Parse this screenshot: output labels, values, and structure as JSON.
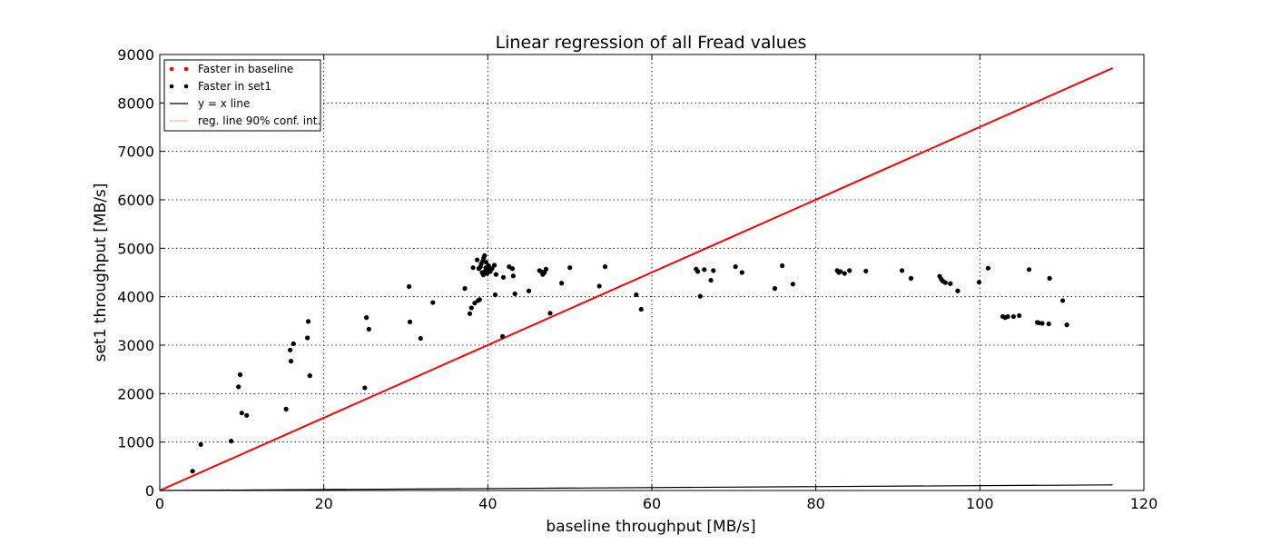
{
  "chart_data": {
    "type": "scatter",
    "title": "Linear regression of all Fread values",
    "xlabel": "baseline throughput [MB/s]",
    "ylabel": "set1 throughput [MB/s]",
    "xlim": [
      0,
      120
    ],
    "ylim": [
      0,
      9000
    ],
    "xticks": [
      0,
      20,
      40,
      60,
      80,
      100,
      120
    ],
    "yticks": [
      0,
      1000,
      2000,
      3000,
      4000,
      5000,
      6000,
      7000,
      8000,
      9000
    ],
    "grid": true,
    "legend_position": "top-left",
    "legend": [
      {
        "label": "Faster in baseline",
        "marker": "dot",
        "color": "#ff0000"
      },
      {
        "label": "Faster in set1",
        "marker": "dot",
        "color": "#000000"
      },
      {
        "label": "y = x line",
        "marker": "line",
        "color": "#000000"
      },
      {
        "label": "reg. line 90% conf. int.",
        "marker": "line",
        "color": "#ffb6c1"
      }
    ],
    "series": [
      {
        "name": "Faster in baseline",
        "color": "#ff0000",
        "points": []
      },
      {
        "name": "Faster in set1",
        "color": "#000000",
        "points": [
          [
            4,
            400
          ],
          [
            5,
            950
          ],
          [
            8.7,
            1020
          ],
          [
            9.6,
            2140
          ],
          [
            9.8,
            2390
          ],
          [
            10,
            1600
          ],
          [
            10.6,
            1550
          ],
          [
            15.4,
            1680
          ],
          [
            15.9,
            2900
          ],
          [
            16,
            2670
          ],
          [
            16.3,
            3030
          ],
          [
            18,
            3150
          ],
          [
            18.1,
            3490
          ],
          [
            18.3,
            2370
          ],
          [
            25,
            2120
          ],
          [
            25.2,
            3570
          ],
          [
            25.5,
            3330
          ],
          [
            30.4,
            4210
          ],
          [
            30.5,
            3480
          ],
          [
            31.8,
            3140
          ],
          [
            33.3,
            3880
          ],
          [
            37.2,
            4170
          ],
          [
            37.8,
            3650
          ],
          [
            38,
            3770
          ],
          [
            38.2,
            4600
          ],
          [
            38.4,
            3870
          ],
          [
            38.7,
            4760
          ],
          [
            38.8,
            3920
          ],
          [
            38.9,
            4580
          ],
          [
            39,
            3940
          ],
          [
            39.1,
            4620
          ],
          [
            39.2,
            4680
          ],
          [
            39.3,
            4500
          ],
          [
            39.4,
            4740
          ],
          [
            39.45,
            4450
          ],
          [
            39.5,
            4800
          ],
          [
            39.6,
            4850
          ],
          [
            39.7,
            4530
          ],
          [
            39.75,
            4600
          ],
          [
            39.8,
            4710
          ],
          [
            39.9,
            4480
          ],
          [
            40,
            4560
          ],
          [
            40.1,
            4640
          ],
          [
            40.3,
            4520
          ],
          [
            40.5,
            4580
          ],
          [
            40.8,
            4650
          ],
          [
            40.9,
            4040
          ],
          [
            41,
            4460
          ],
          [
            41.8,
            3180
          ],
          [
            41.9,
            4400
          ],
          [
            42.6,
            4620
          ],
          [
            43,
            4580
          ],
          [
            43.1,
            4430
          ],
          [
            43.3,
            4060
          ],
          [
            45,
            4120
          ],
          [
            46.3,
            4540
          ],
          [
            46.6,
            4510
          ],
          [
            46.7,
            4460
          ],
          [
            46.9,
            4500
          ],
          [
            47.1,
            4570
          ],
          [
            47.6,
            3660
          ],
          [
            49,
            4280
          ],
          [
            50,
            4600
          ],
          [
            53.6,
            4220
          ],
          [
            54.3,
            4620
          ],
          [
            58.1,
            4040
          ],
          [
            58.7,
            3740
          ],
          [
            65.4,
            4570
          ],
          [
            65.6,
            4520
          ],
          [
            65.9,
            4010
          ],
          [
            66.4,
            4560
          ],
          [
            67.2,
            4340
          ],
          [
            67.5,
            4540
          ],
          [
            70.2,
            4620
          ],
          [
            71,
            4500
          ],
          [
            75,
            4170
          ],
          [
            75.9,
            4640
          ],
          [
            77.2,
            4260
          ],
          [
            82.6,
            4540
          ],
          [
            82.8,
            4500
          ],
          [
            83,
            4520
          ],
          [
            83.5,
            4480
          ],
          [
            84.1,
            4540
          ],
          [
            86.1,
            4530
          ],
          [
            90.5,
            4540
          ],
          [
            91.6,
            4380
          ],
          [
            95.1,
            4420
          ],
          [
            95.3,
            4360
          ],
          [
            95.5,
            4320
          ],
          [
            95.8,
            4290
          ],
          [
            96.4,
            4270
          ],
          [
            97.3,
            4120
          ],
          [
            99.9,
            4300
          ],
          [
            101,
            4590
          ],
          [
            102.8,
            3590
          ],
          [
            103.1,
            3570
          ],
          [
            103.4,
            3590
          ],
          [
            104.1,
            3590
          ],
          [
            104.8,
            3610
          ],
          [
            106,
            4560
          ],
          [
            107,
            3470
          ],
          [
            107.2,
            3460
          ],
          [
            107.6,
            3450
          ],
          [
            108.4,
            3440
          ],
          [
            108.5,
            4380
          ],
          [
            110.1,
            3920
          ],
          [
            110.6,
            3420
          ]
        ]
      }
    ],
    "lines": [
      {
        "name": "regression",
        "color": "#ff0000",
        "x": [
          0,
          116.2
        ],
        "y": [
          0,
          8720
        ]
      },
      {
        "name": "y = x line",
        "color": "#000000",
        "x": [
          0,
          116.2
        ],
        "y": [
          0,
          116.2
        ]
      }
    ]
  }
}
